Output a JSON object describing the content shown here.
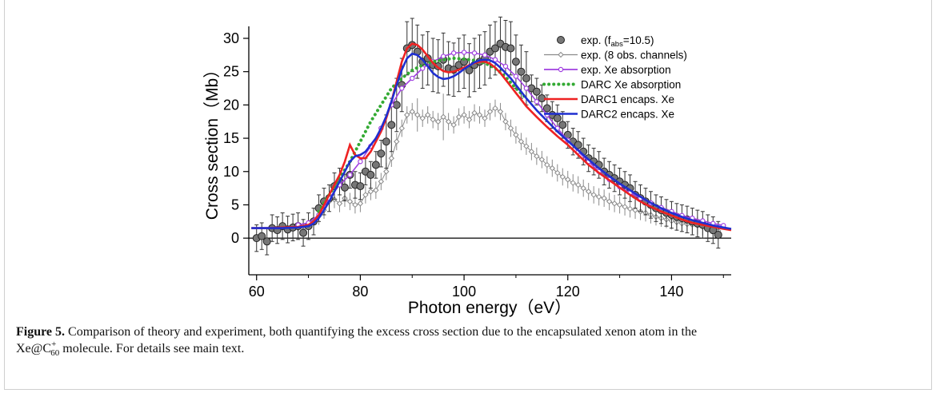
{
  "figure": {
    "caption_label": "Figure 5.",
    "caption_text_1": " Comparison of theory and experiment, both quantifying the excess cross section due to the encapsulated xenon atom in the",
    "caption_mol_prefix": "Xe@C",
    "caption_mol_sup": "+",
    "caption_mol_sub": "60",
    "caption_text_2": " molecule. For details see main text."
  },
  "colors": {
    "exp_fabs_fill": "#777777",
    "exp_8obs": "#8a8a8a",
    "exp_xe_abs": "#a040e0",
    "darc_xe_abs": "#33aa33",
    "darc1": "#ee2222",
    "darc2": "#1f2fd0",
    "axis": "#000000"
  },
  "chart_data": {
    "type": "line",
    "xlabel": "Photon energy（eV）",
    "ylabel": "Cross section（Mb）",
    "xlim": [
      58.5,
      151.5
    ],
    "ylim": [
      -5.5,
      31.8
    ],
    "xticks": [
      60,
      80,
      100,
      120,
      140
    ],
    "yticks": [
      0,
      5,
      10,
      15,
      20,
      25,
      30
    ],
    "zero_line": true,
    "legend_position": "top-right",
    "legend": [
      {
        "key": "exp_fabs",
        "label_main": "exp. (f",
        "label_sub": "abs",
        "label_tail": "=10.5)",
        "style": "filled-circle"
      },
      {
        "key": "exp_8obs",
        "label": "exp. (8 obs. channels)",
        "style": "line-open-diamond"
      },
      {
        "key": "exp_xe_abs",
        "label": "exp. Xe absorption",
        "style": "line-open-circle"
      },
      {
        "key": "darc_xe_abs",
        "label": "DARC Xe absorption",
        "style": "dotted"
      },
      {
        "key": "darc1",
        "label": "DARC1 encaps. Xe",
        "style": "solid"
      },
      {
        "key": "darc2",
        "label": "DARC2 encaps. Xe",
        "style": "solid"
      }
    ],
    "series": {
      "exp_fabs": {
        "points": [
          [
            60,
            0
          ],
          [
            61,
            0.3
          ],
          [
            62,
            -0.5
          ],
          [
            63,
            1.5
          ],
          [
            64,
            1.2
          ],
          [
            65,
            1.8
          ],
          [
            66,
            1.3
          ],
          [
            67,
            1.6
          ],
          [
            68,
            1.8
          ],
          [
            69,
            0.8
          ],
          [
            70,
            1.8
          ],
          [
            71,
            2.5
          ],
          [
            72,
            4.5
          ],
          [
            73,
            5.5
          ],
          [
            74,
            6
          ],
          [
            75,
            7.8
          ],
          [
            76,
            8.5
          ],
          [
            77,
            7.6
          ],
          [
            78,
            9.5
          ],
          [
            79,
            8
          ],
          [
            80,
            7.8
          ],
          [
            81,
            10
          ],
          [
            82,
            9.5
          ],
          [
            83,
            11
          ],
          [
            84,
            12.7
          ],
          [
            85,
            14.5
          ],
          [
            86,
            17
          ],
          [
            87,
            20
          ],
          [
            88,
            23
          ],
          [
            89,
            28.5
          ],
          [
            90,
            29
          ],
          [
            91,
            28
          ],
          [
            92,
            26.5
          ],
          [
            93,
            27
          ],
          [
            94,
            26
          ],
          [
            95,
            25.8
          ],
          [
            96,
            26.8
          ],
          [
            97,
            25.5
          ],
          [
            98,
            25.3
          ],
          [
            99,
            26
          ],
          [
            100,
            26.5
          ],
          [
            101,
            25.2
          ],
          [
            102,
            26
          ],
          [
            103,
            26.5
          ],
          [
            104,
            27
          ],
          [
            105,
            28
          ],
          [
            106,
            28.5
          ],
          [
            107,
            29.2
          ],
          [
            108,
            28.7
          ],
          [
            109,
            28.5
          ],
          [
            110,
            26.5
          ],
          [
            111,
            25
          ],
          [
            112,
            24
          ],
          [
            113,
            22.5
          ],
          [
            114,
            22
          ],
          [
            115,
            21
          ],
          [
            116,
            19.5
          ],
          [
            117,
            18.5
          ],
          [
            118,
            18
          ],
          [
            119,
            17
          ],
          [
            120,
            15.5
          ],
          [
            121,
            14.5
          ],
          [
            122,
            14
          ],
          [
            123,
            13
          ],
          [
            124,
            12
          ],
          [
            125,
            11.5
          ],
          [
            126,
            11
          ],
          [
            127,
            10
          ],
          [
            128,
            9.5
          ],
          [
            129,
            9
          ],
          [
            130,
            8.5
          ],
          [
            131,
            8
          ],
          [
            132,
            7.5
          ],
          [
            133,
            6.5
          ],
          [
            134,
            6
          ],
          [
            135,
            5.5
          ],
          [
            136,
            5
          ],
          [
            137,
            4.5
          ],
          [
            138,
            4.2
          ],
          [
            139,
            3.8
          ],
          [
            140,
            3.5
          ],
          [
            141,
            3.2
          ],
          [
            142,
            3
          ],
          [
            143,
            2.8
          ],
          [
            144,
            2.5
          ],
          [
            145,
            2.2
          ],
          [
            146,
            2
          ],
          [
            147,
            1.5
          ],
          [
            148,
            1.2
          ],
          [
            149,
            0.5
          ]
        ],
        "error": [
          2.0,
          4.0
        ]
      },
      "exp_8obs": {
        "x": [
          68,
          69,
          70,
          71,
          72,
          73,
          74,
          75,
          76,
          77,
          78,
          79,
          80,
          81,
          82,
          83,
          84,
          85,
          86,
          87,
          88,
          89,
          90,
          91,
          92,
          93,
          94,
          95,
          96,
          97,
          98,
          99,
          100,
          101,
          102,
          103,
          104,
          105,
          106,
          107,
          108,
          109,
          110,
          111,
          112,
          113,
          114,
          115,
          116,
          117,
          118,
          119,
          120,
          121,
          122,
          123,
          124,
          125,
          126,
          127,
          128,
          129,
          130,
          131,
          132,
          133,
          134,
          135,
          136,
          137,
          138,
          139,
          140,
          141,
          142,
          143,
          144,
          145,
          146,
          147,
          148,
          149
        ],
        "y": [
          1.5,
          1.6,
          1.8,
          2.5,
          3.3,
          4.2,
          5.5,
          5.8,
          5.2,
          6,
          5.5,
          5,
          5.2,
          6.5,
          7,
          7.2,
          8.5,
          10,
          12,
          14.5,
          16.5,
          18.5,
          19,
          18.5,
          18,
          18.5,
          17.8,
          17.5,
          18.2,
          17.5,
          17,
          18.2,
          18.5,
          17.8,
          18.8,
          18.5,
          18,
          19,
          19.5,
          19,
          17.5,
          16.5,
          15.5,
          14.5,
          13.8,
          13,
          12.3,
          11.8,
          11,
          10.5,
          9.8,
          9.2,
          8.8,
          8.3,
          8,
          7.5,
          7,
          6.5,
          6.2,
          6,
          5.5,
          5.2,
          5,
          4.7,
          4.4,
          4.2,
          4,
          3.8,
          3.5,
          3.2,
          3,
          2.8,
          2.6,
          2.4,
          2.2,
          2.1,
          2,
          1.9,
          1.7,
          1.5,
          1.3,
          1.1
        ],
        "error": 1.3
      },
      "exp_xe_abs": {
        "x": [
          68,
          70,
          72,
          74,
          76,
          78,
          80,
          82,
          84,
          86,
          88,
          90,
          92,
          94,
          96,
          98,
          100,
          102,
          104,
          106,
          108,
          110,
          112,
          114,
          116,
          118,
          120,
          122,
          124,
          126,
          128,
          130,
          132,
          134,
          136,
          138,
          140,
          142,
          144,
          146,
          148,
          150
        ],
        "y": [
          2,
          2.3,
          3.5,
          6,
          8,
          9.5,
          11.5,
          13.8,
          16.5,
          20,
          22.5,
          24,
          25.5,
          26.5,
          27.3,
          27.8,
          27.9,
          27.8,
          27.5,
          26.8,
          25.8,
          24.3,
          22.5,
          20.5,
          18.5,
          16.5,
          14.7,
          13,
          11.5,
          10,
          8.8,
          7.7,
          6.8,
          6,
          5.3,
          4.6,
          4,
          3.4,
          3,
          2.6,
          2.2,
          1.9
        ]
      },
      "darc_xe_abs": {
        "x": [
          72,
          74,
          76,
          78,
          80,
          82,
          84,
          86,
          88,
          90,
          92,
          94,
          96,
          98,
          100,
          102,
          104,
          106,
          108,
          110,
          112
        ],
        "y": [
          4,
          6.5,
          9,
          11.5,
          14.5,
          17.5,
          20,
          22.5,
          24,
          25.2,
          26,
          26.5,
          26.8,
          27,
          26.9,
          26.7,
          26.3,
          25.5,
          24.2,
          22.5,
          21
        ]
      },
      "darc1": {
        "x": [
          59,
          62,
          65,
          68,
          70,
          71,
          72,
          73,
          74,
          75,
          76,
          77,
          78,
          79,
          80,
          81,
          82,
          83,
          84,
          85,
          86,
          87,
          88,
          89,
          90,
          91,
          92,
          93,
          94,
          95,
          96,
          97,
          98,
          99,
          100,
          101,
          102,
          103,
          104,
          105,
          106,
          107,
          108,
          109,
          110,
          111,
          112,
          114,
          116,
          118,
          120,
          122,
          124,
          126,
          128,
          130,
          132,
          134,
          136,
          138,
          140,
          142,
          144,
          146,
          148,
          150,
          151.5
        ],
        "y": [
          1.5,
          1.5,
          1.6,
          1.7,
          2,
          2.5,
          3.5,
          5,
          6.5,
          8,
          9.5,
          11.5,
          14,
          12.5,
          12,
          12,
          13,
          14.5,
          16,
          18,
          20.5,
          23.5,
          26.5,
          28.5,
          29.2,
          29,
          28.3,
          27.3,
          26.3,
          25.6,
          25.1,
          24.9,
          25,
          25.3,
          25.6,
          26,
          26.3,
          26.5,
          26.5,
          26.2,
          25.6,
          24.8,
          23.8,
          22.8,
          21.8,
          20.8,
          19.8,
          18.2,
          16.7,
          15.3,
          14,
          12.5,
          11,
          9.8,
          8.7,
          7.6,
          6.5,
          5.5,
          4.7,
          4,
          3.4,
          2.8,
          2.3,
          2,
          1.7,
          1.4,
          1.2
        ]
      },
      "darc2": {
        "x": [
          59,
          62,
          65,
          68,
          70,
          71,
          72,
          73,
          74,
          75,
          76,
          77,
          78,
          79,
          80,
          81,
          82,
          83,
          84,
          85,
          86,
          87,
          88,
          89,
          90,
          91,
          92,
          93,
          94,
          95,
          96,
          97,
          98,
          99,
          100,
          101,
          102,
          103,
          104,
          105,
          106,
          107,
          108,
          109,
          110,
          111,
          112,
          114,
          116,
          118,
          120,
          122,
          124,
          126,
          128,
          130,
          132,
          134,
          136,
          138,
          140,
          142,
          144,
          146,
          148,
          150,
          151.5
        ],
        "y": [
          1.5,
          1.5,
          1.5,
          1.6,
          1.8,
          2.2,
          3,
          4.2,
          5.5,
          7,
          8.5,
          10,
          11.5,
          12.3,
          12.5,
          13,
          14,
          15,
          16.5,
          18.3,
          20.5,
          23,
          25.3,
          27,
          27.7,
          27.5,
          26.8,
          25.8,
          24.8,
          24.2,
          23.9,
          24,
          24.3,
          24.8,
          25.4,
          25.9,
          26.4,
          26.7,
          26.8,
          26.7,
          26.3,
          25.6,
          24.8,
          24,
          23,
          22,
          21,
          19.2,
          17.6,
          16,
          14.6,
          13.2,
          11.8,
          10.5,
          9.3,
          8.2,
          7.2,
          6.2,
          5.3,
          4.5,
          3.8,
          3.2,
          2.7,
          2.3,
          1.9,
          1.6,
          1.4
        ]
      }
    }
  }
}
